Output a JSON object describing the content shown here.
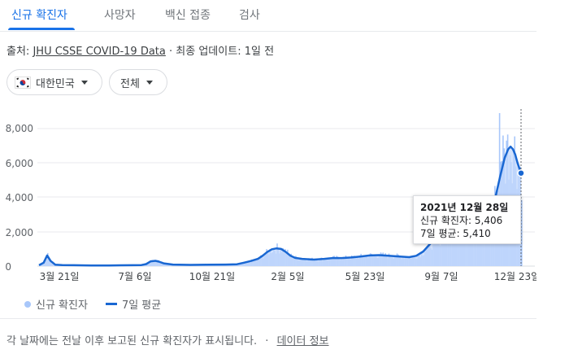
{
  "tabs": [
    {
      "label": "신규 확진자",
      "active": true
    },
    {
      "label": "사망자",
      "active": false
    },
    {
      "label": "백신 접종",
      "active": false
    },
    {
      "label": "검사",
      "active": false
    }
  ],
  "source": {
    "prefix": "출처:",
    "link": "JHU CSSE COVID-19 Data",
    "separator": "·",
    "updated": "최종 업데이트: 1일 전"
  },
  "filters": {
    "country_flag": "korea-flag-icon",
    "country": "대한민국",
    "scope": "전체"
  },
  "chart_data": {
    "type": "area",
    "x": [
      "3월 21일",
      "7월 6일",
      "10월 21일",
      "2월 5일",
      "5월 23일",
      "9월 7일",
      "12월 23일"
    ],
    "y_ticks": [
      "8,000",
      "6,000",
      "4,000",
      "2,000",
      "0"
    ],
    "ylim": [
      0,
      9000
    ],
    "series": [
      {
        "name": "신규 확진자",
        "style": "bars",
        "color": "#a8c7fa"
      },
      {
        "name": "7일 평균",
        "style": "line",
        "color": "#1967d2"
      }
    ],
    "avg_points": [
      [
        0,
        50
      ],
      [
        4,
        200
      ],
      [
        7,
        620
      ],
      [
        10,
        300
      ],
      [
        14,
        80
      ],
      [
        20,
        60
      ],
      [
        30,
        50
      ],
      [
        45,
        40
      ],
      [
        60,
        40
      ],
      [
        70,
        45
      ],
      [
        80,
        50
      ],
      [
        88,
        60
      ],
      [
        92,
        120
      ],
      [
        96,
        280
      ],
      [
        100,
        310
      ],
      [
        103,
        260
      ],
      [
        107,
        160
      ],
      [
        115,
        90
      ],
      [
        130,
        70
      ],
      [
        145,
        80
      ],
      [
        160,
        90
      ],
      [
        170,
        110
      ],
      [
        176,
        200
      ],
      [
        182,
        300
      ],
      [
        188,
        420
      ],
      [
        192,
        600
      ],
      [
        196,
        820
      ],
      [
        200,
        980
      ],
      [
        204,
        1030
      ],
      [
        208,
        1000
      ],
      [
        212,
        820
      ],
      [
        216,
        600
      ],
      [
        220,
        480
      ],
      [
        226,
        420
      ],
      [
        236,
        380
      ],
      [
        245,
        420
      ],
      [
        252,
        470
      ],
      [
        260,
        470
      ],
      [
        268,
        500
      ],
      [
        276,
        560
      ],
      [
        284,
        620
      ],
      [
        292,
        640
      ],
      [
        300,
        600
      ],
      [
        310,
        560
      ],
      [
        318,
        520
      ],
      [
        324,
        600
      ],
      [
        330,
        850
      ],
      [
        336,
        1300
      ],
      [
        342,
        1650
      ],
      [
        348,
        1780
      ],
      [
        354,
        1900
      ],
      [
        360,
        2000
      ],
      [
        366,
        2300
      ],
      [
        372,
        2600
      ],
      [
        378,
        2750
      ],
      [
        384,
        2900
      ],
      [
        388,
        3300
      ],
      [
        392,
        4000
      ],
      [
        396,
        5200
      ],
      [
        400,
        6300
      ],
      [
        403,
        6800
      ],
      [
        405,
        6950
      ],
      [
        407,
        6800
      ],
      [
        409,
        6500
      ],
      [
        411,
        6000
      ],
      [
        413,
        5600
      ],
      [
        414,
        5410
      ]
    ],
    "x_max": 414
  },
  "tooltip": {
    "date": "2021년 12월 28일",
    "cases_label": "신규 확진자: 5,406",
    "avg_label": "7일 평균: 5,410"
  },
  "legend": {
    "cases": "신규 확진자",
    "avg": "7일 평균"
  },
  "footer": {
    "note": "각 날짜에는 전날 이후 보고된 신규 확진자가 표시됩니다.",
    "separator": "·",
    "link": "데이터 정보"
  },
  "colors": {
    "accent": "#1a73e8",
    "area": "#a8c7fa",
    "line": "#1967d2"
  }
}
